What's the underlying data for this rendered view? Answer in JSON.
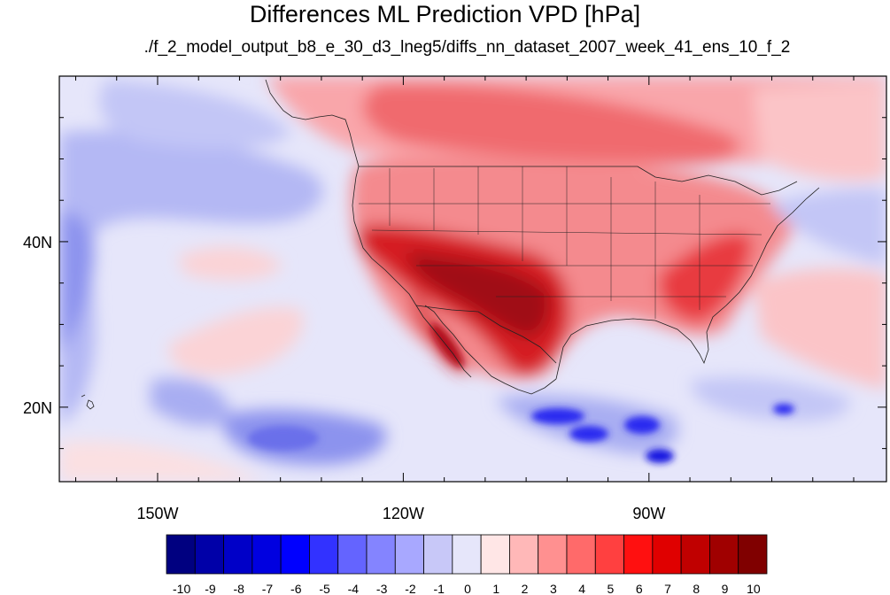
{
  "title": "Differences ML Prediction VPD [hPa]",
  "subtitle": "./f_2_model_output_b8_e_30_d3_lneg5/diffs_nn_dataset_2007_week_41_ens_10_f_2",
  "map": {
    "lon_range": [
      -162,
      -61
    ],
    "lat_range": [
      11,
      60
    ],
    "lon_ticks": [
      {
        "lon": -150,
        "label": "150W"
      },
      {
        "lon": -120,
        "label": "120W"
      },
      {
        "lon": -90,
        "label": "90W"
      }
    ],
    "lat_ticks": [
      {
        "lat": 40,
        "label": "40N"
      },
      {
        "lat": 20,
        "label": "20N"
      }
    ],
    "background_color": "#e6e6fa"
  },
  "colorbar": {
    "labels": [
      "-10",
      "-9",
      "-8",
      "-7",
      "-6",
      "-5",
      "-4",
      "-3",
      "-2",
      "-1",
      "0",
      "1",
      "2",
      "3",
      "4",
      "5",
      "6",
      "7",
      "8",
      "9",
      "10"
    ],
    "colors": [
      "#000080",
      "#0000a8",
      "#0000c8",
      "#0000e0",
      "#0000ff",
      "#3232ff",
      "#6464ff",
      "#8484ff",
      "#a8a8ff",
      "#c8c8f8",
      "#e6e6fa",
      "#ffe6e6",
      "#ffb8b8",
      "#ff9090",
      "#ff6a6a",
      "#ff4040",
      "#ff1010",
      "#e00000",
      "#c00000",
      "#a00000",
      "#800000"
    ]
  }
}
